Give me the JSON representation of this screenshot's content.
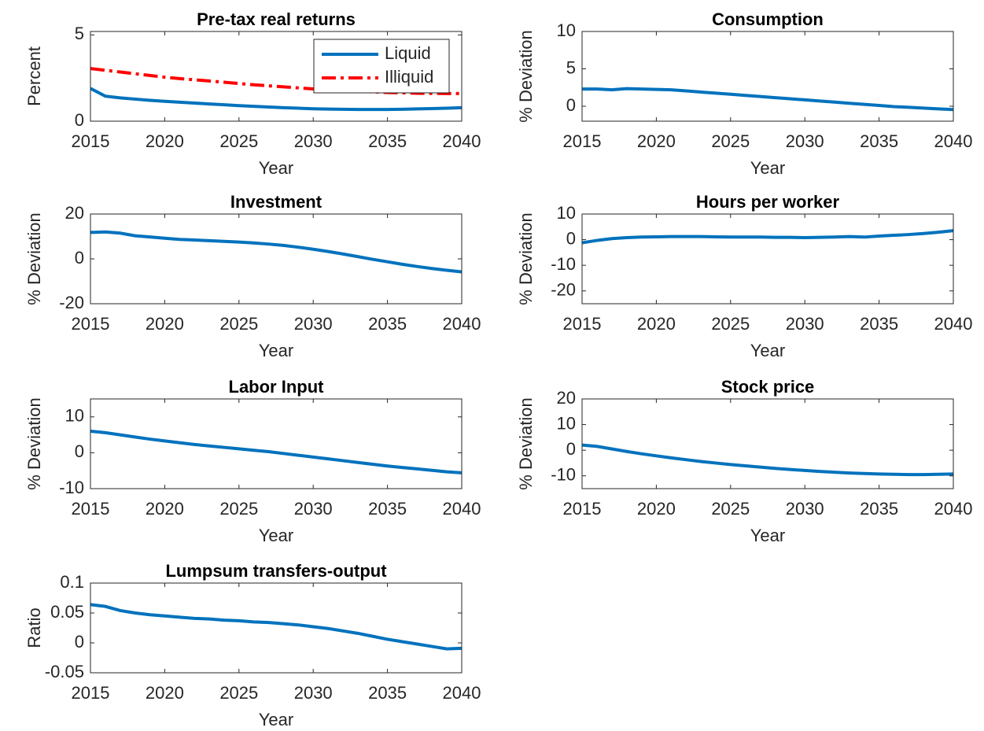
{
  "chart_data": [
    {
      "type": "line",
      "title": "Pre-tax real returns",
      "xlabel": "Year",
      "ylabel": "Percent",
      "x": [
        2015,
        2016,
        2017,
        2018,
        2019,
        2020,
        2021,
        2022,
        2023,
        2024,
        2025,
        2026,
        2027,
        2028,
        2029,
        2030,
        2031,
        2032,
        2033,
        2034,
        2035,
        2036,
        2037,
        2038,
        2039,
        2040
      ],
      "series": [
        {
          "name": "Liquid",
          "color": "#0072BD",
          "linestyle": "solid",
          "values": [
            1.9,
            1.45,
            1.35,
            1.28,
            1.21,
            1.15,
            1.1,
            1.05,
            1.0,
            0.95,
            0.9,
            0.86,
            0.82,
            0.78,
            0.75,
            0.72,
            0.7,
            0.69,
            0.68,
            0.68,
            0.68,
            0.69,
            0.71,
            0.73,
            0.75,
            0.78
          ]
        },
        {
          "name": "Illiquid",
          "color": "#FF0000",
          "linestyle": "dashdot",
          "values": [
            3.05,
            2.95,
            2.85,
            2.75,
            2.65,
            2.55,
            2.47,
            2.4,
            2.33,
            2.26,
            2.18,
            2.11,
            2.05,
            1.99,
            1.93,
            1.87,
            1.82,
            1.78,
            1.74,
            1.7,
            1.66,
            1.64,
            1.62,
            1.61,
            1.6,
            1.6
          ]
        }
      ],
      "xlim": [
        2015,
        2040
      ],
      "ylim": [
        0,
        5.2
      ],
      "xticks": [
        2015,
        2020,
        2025,
        2030,
        2035,
        2040
      ],
      "yticks": [
        0,
        5
      ],
      "legend": "northeast"
    },
    {
      "type": "line",
      "title": "Consumption",
      "xlabel": "Year",
      "ylabel": "% Deviation",
      "x": [
        2015,
        2016,
        2017,
        2018,
        2019,
        2020,
        2021,
        2022,
        2023,
        2024,
        2025,
        2026,
        2027,
        2028,
        2029,
        2030,
        2031,
        2032,
        2033,
        2034,
        2035,
        2036,
        2037,
        2038,
        2039,
        2040
      ],
      "series": [
        {
          "name": "Consumption",
          "color": "#0072BD",
          "linestyle": "solid",
          "values": [
            2.3,
            2.3,
            2.2,
            2.35,
            2.3,
            2.25,
            2.2,
            2.05,
            1.9,
            1.75,
            1.6,
            1.45,
            1.3,
            1.15,
            1.0,
            0.85,
            0.7,
            0.55,
            0.4,
            0.25,
            0.1,
            -0.05,
            -0.15,
            -0.25,
            -0.35,
            -0.45
          ]
        }
      ],
      "xlim": [
        2015,
        2040
      ],
      "ylim": [
        -2,
        10
      ],
      "xticks": [
        2015,
        2020,
        2025,
        2030,
        2035,
        2040
      ],
      "yticks": [
        0,
        5,
        10
      ]
    },
    {
      "type": "line",
      "title": "Investment",
      "xlabel": "Year",
      "ylabel": "% Deviation",
      "x": [
        2015,
        2016,
        2017,
        2018,
        2019,
        2020,
        2021,
        2022,
        2023,
        2024,
        2025,
        2026,
        2027,
        2028,
        2029,
        2030,
        2031,
        2032,
        2033,
        2034,
        2035,
        2036,
        2037,
        2038,
        2039,
        2040
      ],
      "series": [
        {
          "name": "Investment",
          "color": "#0072BD",
          "linestyle": "solid",
          "values": [
            11.8,
            12,
            11.5,
            10.3,
            9.8,
            9.2,
            8.7,
            8.4,
            8.1,
            7.8,
            7.5,
            7.1,
            6.6,
            6,
            5.2,
            4.3,
            3.3,
            2.2,
            1.0,
            -0.2,
            -1.3,
            -2.4,
            -3.4,
            -4.3,
            -5.1,
            -5.8
          ]
        }
      ],
      "xlim": [
        2015,
        2040
      ],
      "ylim": [
        -20,
        20
      ],
      "xticks": [
        2015,
        2020,
        2025,
        2030,
        2035,
        2040
      ],
      "yticks": [
        -20,
        0,
        20
      ]
    },
    {
      "type": "line",
      "title": "Hours per worker",
      "xlabel": "Year",
      "ylabel": "% Deviation",
      "x": [
        2015,
        2016,
        2017,
        2018,
        2019,
        2020,
        2021,
        2022,
        2023,
        2024,
        2025,
        2026,
        2027,
        2028,
        2029,
        2030,
        2031,
        2032,
        2033,
        2034,
        2035,
        2036,
        2037,
        2038,
        2039,
        2040
      ],
      "series": [
        {
          "name": "Hours per worker",
          "color": "#0072BD",
          "linestyle": "solid",
          "values": [
            -1.2,
            -0.3,
            0.4,
            0.8,
            1.0,
            1.1,
            1.2,
            1.2,
            1.2,
            1.1,
            1.0,
            1.0,
            1.0,
            0.9,
            0.9,
            0.8,
            0.9,
            1.0,
            1.2,
            1.0,
            1.4,
            1.7,
            2.0,
            2.4,
            2.9,
            3.5
          ]
        }
      ],
      "xlim": [
        2015,
        2040
      ],
      "ylim": [
        -25,
        10
      ],
      "xticks": [
        2015,
        2020,
        2025,
        2030,
        2035,
        2040
      ],
      "yticks": [
        -20,
        -10,
        0,
        10
      ]
    },
    {
      "type": "line",
      "title": "Labor Input",
      "xlabel": "Year",
      "ylabel": "% Deviation",
      "x": [
        2015,
        2016,
        2017,
        2018,
        2019,
        2020,
        2021,
        2022,
        2023,
        2024,
        2025,
        2026,
        2027,
        2028,
        2029,
        2030,
        2031,
        2032,
        2033,
        2034,
        2035,
        2036,
        2037,
        2038,
        2039,
        2040
      ],
      "series": [
        {
          "name": "Labor Input",
          "color": "#0072BD",
          "linestyle": "solid",
          "values": [
            6,
            5.6,
            5.0,
            4.4,
            3.8,
            3.3,
            2.8,
            2.3,
            1.9,
            1.5,
            1.1,
            0.7,
            0.3,
            -0.2,
            -0.7,
            -1.2,
            -1.7,
            -2.2,
            -2.7,
            -3.2,
            -3.7,
            -4.1,
            -4.5,
            -4.9,
            -5.3,
            -5.6
          ]
        }
      ],
      "xlim": [
        2015,
        2040
      ],
      "ylim": [
        -10,
        15
      ],
      "xticks": [
        2015,
        2020,
        2025,
        2030,
        2035,
        2040
      ],
      "yticks": [
        -10,
        0,
        10
      ]
    },
    {
      "type": "line",
      "title": "Stock price",
      "xlabel": "Year",
      "ylabel": "% Deviation",
      "x": [
        2015,
        2016,
        2017,
        2018,
        2019,
        2020,
        2021,
        2022,
        2023,
        2024,
        2025,
        2026,
        2027,
        2028,
        2029,
        2030,
        2031,
        2032,
        2033,
        2034,
        2035,
        2036,
        2037,
        2038,
        2039,
        2040
      ],
      "series": [
        {
          "name": "Stock price",
          "color": "#0072BD",
          "linestyle": "solid",
          "values": [
            2,
            1.5,
            0.5,
            -0.5,
            -1.4,
            -2.2,
            -3,
            -3.7,
            -4.4,
            -5,
            -5.6,
            -6.1,
            -6.6,
            -7.1,
            -7.5,
            -7.9,
            -8.3,
            -8.6,
            -8.9,
            -9.1,
            -9.3,
            -9.4,
            -9.5,
            -9.5,
            -9.4,
            -9.3
          ]
        }
      ],
      "xlim": [
        2015,
        2040
      ],
      "ylim": [
        -15,
        20
      ],
      "xticks": [
        2015,
        2020,
        2025,
        2030,
        2035,
        2040
      ],
      "yticks": [
        -10,
        0,
        10,
        20
      ]
    },
    {
      "type": "line",
      "title": "Lumpsum transfers-output",
      "xlabel": "Year",
      "ylabel": "Ratio",
      "x": [
        2015,
        2016,
        2017,
        2018,
        2019,
        2020,
        2021,
        2022,
        2023,
        2024,
        2025,
        2026,
        2027,
        2028,
        2029,
        2030,
        2031,
        2032,
        2033,
        2034,
        2035,
        2036,
        2037,
        2038,
        2039,
        2040
      ],
      "series": [
        {
          "name": "Lumpsum transfers-output",
          "color": "#0072BD",
          "linestyle": "solid",
          "values": [
            0.064,
            0.061,
            0.054,
            0.05,
            0.047,
            0.045,
            0.043,
            0.041,
            0.04,
            0.038,
            0.037,
            0.035,
            0.034,
            0.032,
            0.03,
            0.027,
            0.024,
            0.02,
            0.016,
            0.011,
            0.006,
            0.002,
            -0.002,
            -0.006,
            -0.01,
            -0.009
          ]
        }
      ],
      "xlim": [
        2015,
        2040
      ],
      "ylim": [
        -0.05,
        0.1
      ],
      "xticks": [
        2015,
        2020,
        2025,
        2030,
        2035,
        2040
      ],
      "yticks": [
        -0.05,
        0,
        0.05,
        0.1
      ]
    }
  ]
}
